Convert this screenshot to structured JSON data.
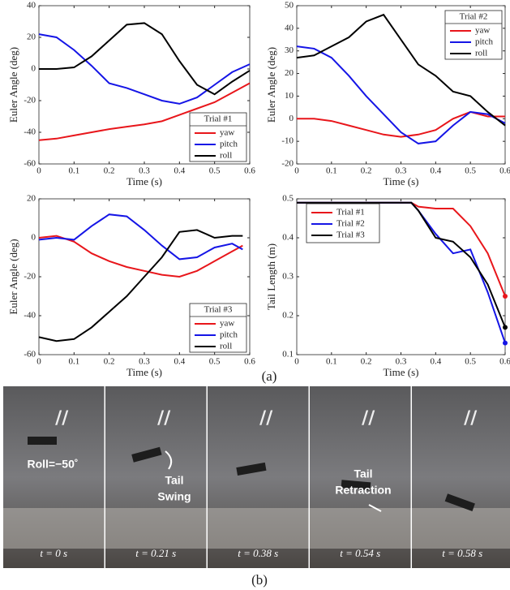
{
  "chart_data": [
    {
      "type": "line",
      "xlabel": "Time (s)",
      "ylabel": "Euler Angle (deg)",
      "legend_title": "Trial #1",
      "legend": "lower right",
      "x": [
        0,
        0.05,
        0.1,
        0.15,
        0.2,
        0.25,
        0.3,
        0.35,
        0.4,
        0.45,
        0.5,
        0.55,
        0.6
      ],
      "series": [
        {
          "name": "yaw",
          "color": "#e8161b",
          "values": [
            -45,
            -44,
            -42,
            -40,
            -38,
            -36.5,
            -35,
            -33,
            -29,
            -25,
            -21,
            -15,
            -9
          ]
        },
        {
          "name": "pitch",
          "color": "#1515e6",
          "values": [
            22,
            20,
            12,
            2,
            -9,
            -12,
            -16,
            -20,
            -22,
            -18,
            -10,
            -2,
            3
          ]
        },
        {
          "name": "roll",
          "color": "#000000",
          "values": [
            0,
            0,
            1,
            8,
            18,
            28,
            29,
            22,
            5,
            -10,
            -16,
            -8,
            -1
          ]
        }
      ],
      "xlim": [
        0,
        0.6
      ],
      "xticks": [
        0,
        0.1,
        0.2,
        0.3,
        0.4,
        0.5,
        0.6
      ],
      "ylim": [
        -60,
        40
      ],
      "yticks": [
        -60,
        -40,
        -20,
        0,
        20,
        40
      ]
    },
    {
      "type": "line",
      "xlabel": "Time (s)",
      "ylabel": "Euler Angle (deg)",
      "legend_title": "Trial #2",
      "legend": "upper right",
      "x": [
        0,
        0.05,
        0.1,
        0.15,
        0.2,
        0.25,
        0.3,
        0.35,
        0.4,
        0.45,
        0.5,
        0.55,
        0.6
      ],
      "series": [
        {
          "name": "yaw",
          "color": "#e8161b",
          "values": [
            0,
            0,
            -1,
            -3,
            -5,
            -7,
            -8,
            -7,
            -5,
            0,
            3,
            1,
            1
          ]
        },
        {
          "name": "pitch",
          "color": "#1515e6",
          "values": [
            32,
            31,
            27,
            19,
            10,
            2,
            -6,
            -11,
            -10,
            -3,
            3,
            2,
            -2
          ]
        },
        {
          "name": "roll",
          "color": "#000000",
          "values": [
            27,
            28,
            32,
            36,
            43,
            46,
            35,
            24,
            19,
            12,
            10,
            3,
            -3
          ]
        }
      ],
      "xlim": [
        0,
        0.6
      ],
      "xticks": [
        0,
        0.1,
        0.2,
        0.3,
        0.4,
        0.5,
        0.6
      ],
      "ylim": [
        -20,
        50
      ],
      "yticks": [
        -20,
        -10,
        0,
        10,
        20,
        30,
        40,
        50
      ]
    },
    {
      "type": "line",
      "xlabel": "Time (s)",
      "ylabel": "Euler Angle (deg)",
      "legend_title": "Trial #3",
      "legend": "lower right",
      "x": [
        0,
        0.05,
        0.1,
        0.15,
        0.2,
        0.25,
        0.3,
        0.35,
        0.4,
        0.45,
        0.5,
        0.55,
        0.58
      ],
      "series": [
        {
          "name": "yaw",
          "color": "#e8161b",
          "values": [
            0,
            1,
            -2,
            -8,
            -12,
            -15,
            -17,
            -19,
            -20,
            -17,
            -12,
            -7,
            -4
          ]
        },
        {
          "name": "pitch",
          "color": "#1515e6",
          "values": [
            -1,
            0,
            -1,
            6,
            12,
            11,
            4,
            -4,
            -11,
            -10,
            -5,
            -3,
            -6
          ]
        },
        {
          "name": "roll",
          "color": "#000000",
          "values": [
            -51,
            -53,
            -52,
            -46,
            -38,
            -30,
            -20,
            -10,
            3,
            4,
            0,
            1,
            1
          ]
        }
      ],
      "xlim": [
        0,
        0.6
      ],
      "xticks": [
        0,
        0.1,
        0.2,
        0.3,
        0.4,
        0.5,
        0.6
      ],
      "ylim": [
        -60,
        20
      ],
      "yticks": [
        -60,
        -40,
        -20,
        0,
        20
      ]
    },
    {
      "type": "line",
      "xlabel": "Time (s)",
      "ylabel": "Tail Length (m)",
      "legend": "upper left",
      "end_markers": true,
      "x": [
        0,
        0.1,
        0.2,
        0.3,
        0.33,
        0.35,
        0.4,
        0.45,
        0.5,
        0.55,
        0.6
      ],
      "series": [
        {
          "name": "Trial #1",
          "color": "#e8161b",
          "values": [
            0.49,
            0.49,
            0.49,
            0.49,
            0.49,
            0.48,
            0.475,
            0.475,
            0.43,
            0.36,
            0.25
          ]
        },
        {
          "name": "Trial #2",
          "color": "#1515e6",
          "values": [
            0.49,
            0.49,
            0.49,
            0.49,
            0.49,
            0.47,
            0.41,
            0.36,
            0.37,
            0.26,
            0.13
          ]
        },
        {
          "name": "Trial #3",
          "color": "#000000",
          "values": [
            0.49,
            0.49,
            0.49,
            0.49,
            0.49,
            0.47,
            0.4,
            0.39,
            0.35,
            0.28,
            0.17
          ]
        }
      ],
      "xlim": [
        0,
        0.6
      ],
      "xticks": [
        0,
        0.1,
        0.2,
        0.3,
        0.4,
        0.5,
        0.6
      ],
      "ylim": [
        0.1,
        0.5
      ],
      "yticks": [
        0.1,
        0.2,
        0.3,
        0.4,
        0.5
      ]
    }
  ],
  "caption_a": "(a)",
  "photo_strip": {
    "annotations": [
      "Roll=−50˚",
      "Tail",
      "Swing",
      "Tail",
      "Retraction"
    ],
    "times": [
      "t = 0 s",
      "t = 0.21 s",
      "t = 0.38 s",
      "t = 0.54 s",
      "t = 0.58 s"
    ],
    "caption": "(b)"
  }
}
